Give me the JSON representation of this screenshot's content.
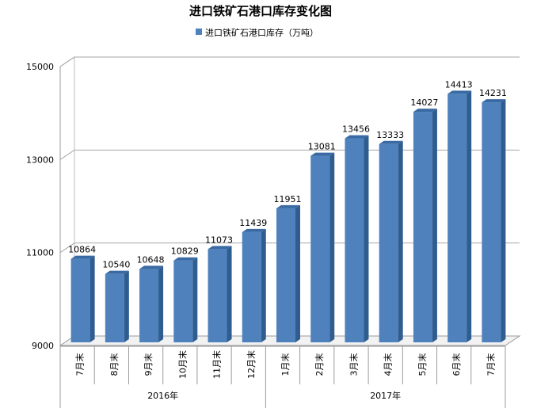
{
  "chart_data": {
    "type": "bar",
    "title": "进口铁矿石港口库存变化图",
    "legend": {
      "position": "top",
      "label": "进口铁矿石港口库存（万吨）"
    },
    "ylim": [
      9000,
      15000
    ],
    "yticks": [
      "9000",
      "11000",
      "13000",
      "15000"
    ],
    "gridlines": true,
    "categories": [
      "7月末",
      "8月末",
      "9月末",
      "10月末",
      "11月末",
      "12月末",
      "1月末",
      "2月末",
      "3月末",
      "4月末",
      "5月末",
      "6月末",
      "7月末"
    ],
    "groups": [
      {
        "label": "2016年",
        "start": 0,
        "end": 5
      },
      {
        "label": "2017年",
        "start": 6,
        "end": 12
      }
    ],
    "series": [
      {
        "name": "进口铁矿石港口库存（万吨）",
        "color": "#4f81bd",
        "values": [
          10864,
          10540,
          10648,
          10829,
          11073,
          11439,
          11951,
          13081,
          13456,
          13333,
          14027,
          14413,
          14231
        ]
      }
    ]
  }
}
